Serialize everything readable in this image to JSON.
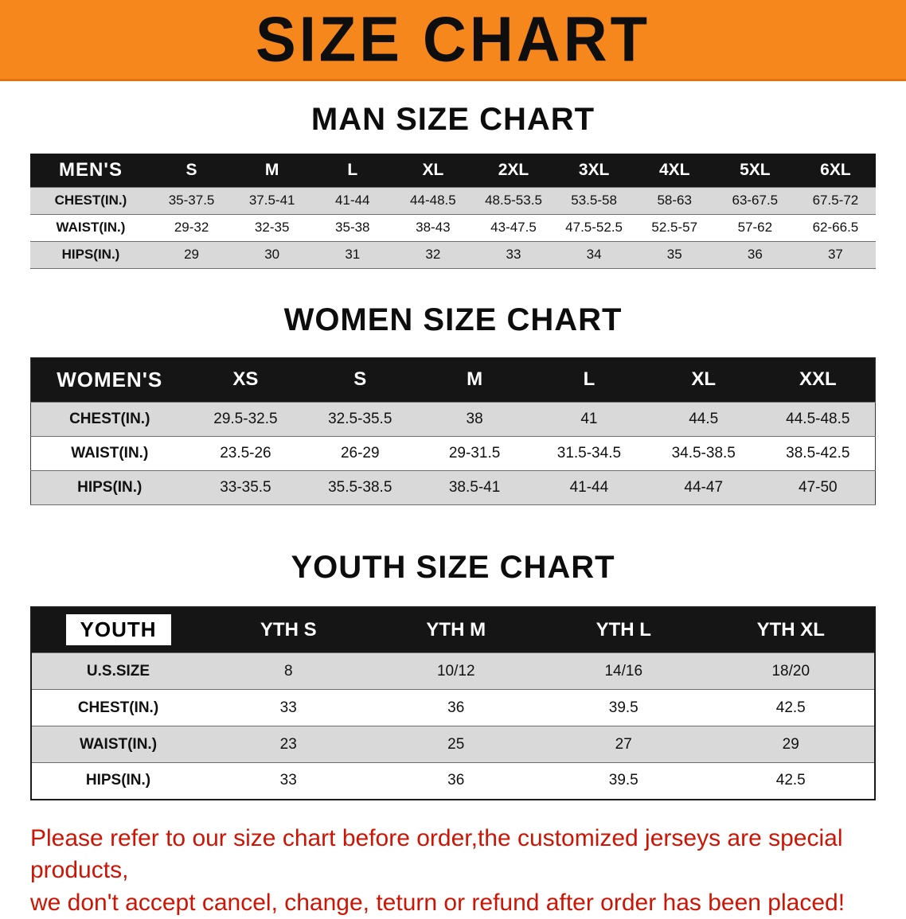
{
  "banner": {
    "title": "SIZE CHART"
  },
  "colors": {
    "banner_bg": "#f6871d",
    "table_header_bg": "#151515",
    "stripe_row": "#d9d9d9",
    "notice_text": "#cc1505"
  },
  "sections": [
    {
      "heading": "MAN SIZE CHART",
      "table": {
        "header": [
          "MEN'S",
          "S",
          "M",
          "L",
          "XL",
          "2XL",
          "3XL",
          "4XL",
          "5XL",
          "6XL"
        ],
        "rows": [
          [
            "CHEST(IN.)",
            "35-37.5",
            "37.5-41",
            "41-44",
            "44-48.5",
            "48.5-53.5",
            "53.5-58",
            "58-63",
            "63-67.5",
            "67.5-72"
          ],
          [
            "WAIST(IN.)",
            "29-32",
            "32-35",
            "35-38",
            "38-43",
            "43-47.5",
            "47.5-52.5",
            "52.5-57",
            "57-62",
            "62-66.5"
          ],
          [
            "HIPS(IN.)",
            "29",
            "30",
            "31",
            "32",
            "33",
            "34",
            "35",
            "36",
            "37"
          ]
        ]
      }
    },
    {
      "heading": "WOMEN SIZE CHART",
      "table": {
        "header": [
          "WOMEN'S",
          "XS",
          "S",
          "M",
          "L",
          "XL",
          "XXL"
        ],
        "rows": [
          [
            "CHEST(IN.)",
            "29.5-32.5",
            "32.5-35.5",
            "38",
            "41",
            "44.5",
            "44.5-48.5"
          ],
          [
            "WAIST(IN.)",
            "23.5-26",
            "26-29",
            "29-31.5",
            "31.5-34.5",
            "34.5-38.5",
            "38.5-42.5"
          ],
          [
            "HIPS(IN.)",
            "33-35.5",
            "35.5-38.5",
            "38.5-41",
            "41-44",
            "44-47",
            "47-50"
          ]
        ]
      }
    },
    {
      "heading": "YOUTH SIZE CHART",
      "table": {
        "header": [
          "YOUTH",
          "YTH S",
          "YTH M",
          "YTH L",
          "YTH XL"
        ],
        "rows": [
          [
            "U.S.SIZE",
            "8",
            "10/12",
            "14/16",
            "18/20"
          ],
          [
            "CHEST(IN.)",
            "33",
            "36",
            "39.5",
            "42.5"
          ],
          [
            "WAIST(IN.)",
            "23",
            "25",
            "27",
            "29"
          ],
          [
            "HIPS(IN.)",
            "33",
            "36",
            "39.5",
            "42.5"
          ]
        ]
      }
    }
  ],
  "footer": {
    "line1": "Please refer to our size chart before order,the customized jerseys are special products,",
    "line2": "we don't accept cancel, change, teturn or refund after order has been placed!"
  }
}
